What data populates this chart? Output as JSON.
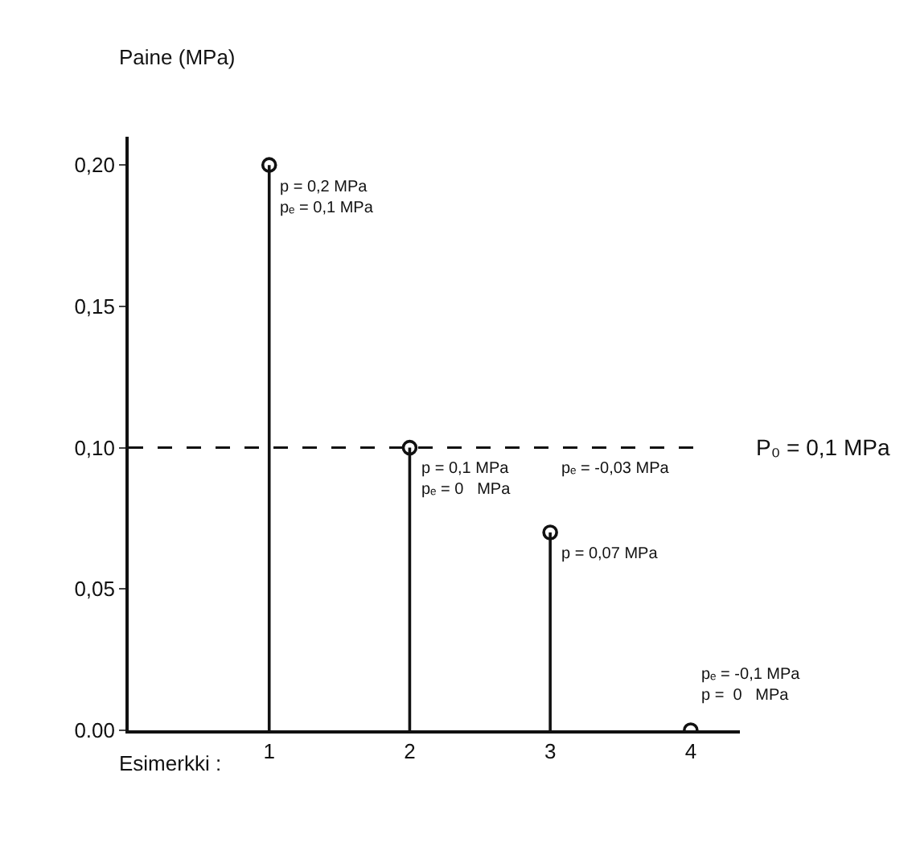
{
  "chart_data": {
    "type": "lollipop",
    "ylabel": "Paine (MPa)",
    "xlabel": "Esimerkki :",
    "categories": [
      "1",
      "2",
      "3",
      "4"
    ],
    "values": [
      0.2,
      0.1,
      0.07,
      0
    ],
    "color": "#111111",
    "marker": "circle",
    "ylim": [
      0,
      0.21
    ],
    "yticks": [
      {
        "value": 0,
        "label": "0.00"
      },
      {
        "value": 0.05,
        "label": "0,05"
      },
      {
        "value": 0.1,
        "label": "0,10"
      },
      {
        "value": 0.15,
        "label": "0,15"
      },
      {
        "value": 0.2,
        "label": "0,20"
      }
    ],
    "grid": false,
    "ref_lines": [
      {
        "axis": "y",
        "value": 0.1,
        "label": "P₀ = 0,1 MPa",
        "line_style": "dashed",
        "color": "#111111"
      }
    ],
    "annotations": [
      {
        "text": "p = 0,2 MPa\npₑ = 0,1 MPa",
        "x": "1",
        "y": 0.2
      },
      {
        "text": "p = 0,1 MPa\npₑ = 0   MPa",
        "x": "2",
        "y": 0.1
      },
      {
        "text": "pₑ = -0,03 MPa",
        "x": "3",
        "y": 0.1
      },
      {
        "text": "p = 0,07 MPa",
        "x": "3",
        "y": 0.07
      },
      {
        "text": "pₑ = -0,1 MPa\np =  0   MPa",
        "x": "4",
        "y": 0
      }
    ]
  }
}
